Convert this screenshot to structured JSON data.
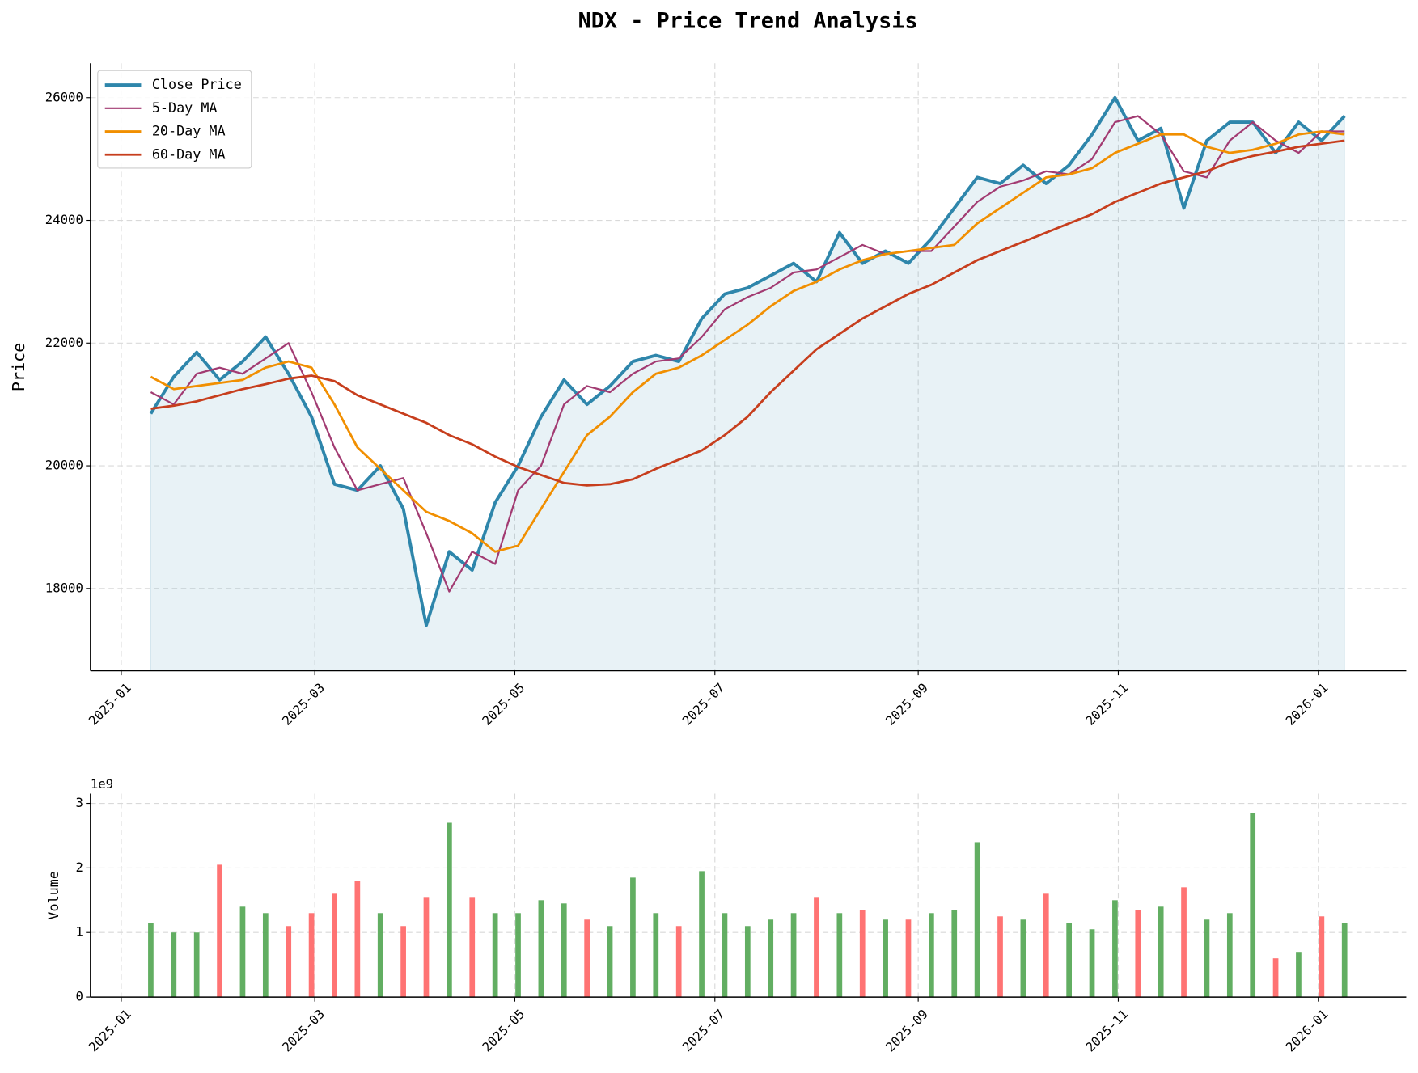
{
  "chart_data": [
    {
      "type": "line",
      "title": "NDX - Price Trend Analysis",
      "ylabel": "Price",
      "grid": true,
      "legend": "upper left",
      "x": [
        9,
        16,
        23,
        30,
        37,
        44,
        51,
        58,
        65,
        72,
        79,
        86,
        93,
        100,
        107,
        114,
        121,
        128,
        135,
        142,
        149,
        156,
        163,
        170,
        177,
        184,
        191,
        198,
        205,
        212,
        219,
        226,
        233,
        240,
        247,
        254,
        261,
        268,
        275,
        282,
        289,
        296,
        303,
        310,
        317,
        324,
        331,
        338,
        345,
        352,
        359,
        366,
        373
      ],
      "xlim": [
        -9.4,
        391.8
      ],
      "xticks": [
        {
          "value": 0,
          "label": "2025-01"
        },
        {
          "value": 59,
          "label": "2025-03"
        },
        {
          "value": 120,
          "label": "2025-05"
        },
        {
          "value": 181,
          "label": "2025-07"
        },
        {
          "value": 243,
          "label": "2025-09"
        },
        {
          "value": 304,
          "label": "2025-11"
        },
        {
          "value": 365,
          "label": "2026-01"
        }
      ],
      "ylim": [
        16660,
        26560
      ],
      "yticks": [
        18000,
        20000,
        22000,
        24000,
        26000
      ],
      "series": [
        {
          "name": "Close Price",
          "color": "#2e86ab",
          "width": 3.5,
          "area": true,
          "values": [
            20850,
            21450,
            21850,
            21400,
            21700,
            22100,
            21500,
            20800,
            19700,
            19600,
            20000,
            19300,
            17400,
            18600,
            18300,
            19400,
            20000,
            20800,
            21400,
            21000,
            21300,
            21700,
            21800,
            21700,
            22400,
            22800,
            22900,
            23100,
            23300,
            23000,
            23800,
            23300,
            23500,
            23300,
            23700,
            24200,
            24700,
            24600,
            24900,
            24600,
            24900,
            25400,
            26000,
            25300,
            25500,
            24200,
            25300,
            25600,
            25600,
            25100,
            25600,
            25300,
            25700
          ]
        },
        {
          "name": "5-Day MA",
          "color": "#a23b72",
          "width": 2,
          "values": [
            21200,
            21000,
            21500,
            21600,
            21500,
            21750,
            22000,
            21200,
            20300,
            19600,
            19700,
            19800,
            18900,
            17950,
            18600,
            18400,
            19600,
            20000,
            21000,
            21300,
            21200,
            21500,
            21700,
            21750,
            22100,
            22550,
            22750,
            22900,
            23150,
            23200,
            23400,
            23600,
            23450,
            23500,
            23500,
            23900,
            24300,
            24550,
            24650,
            24800,
            24750,
            25000,
            25600,
            25700,
            25400,
            24800,
            24700,
            25300,
            25600,
            25300,
            25100,
            25450,
            25450
          ]
        },
        {
          "name": "20-Day MA",
          "color": "#f18f01",
          "width": 2.5,
          "values": [
            21450,
            21250,
            21300,
            21350,
            21400,
            21600,
            21700,
            21600,
            21000,
            20300,
            19950,
            19600,
            19250,
            19100,
            18900,
            18600,
            18700,
            19300,
            19900,
            20500,
            20800,
            21200,
            21500,
            21600,
            21800,
            22050,
            22300,
            22600,
            22850,
            23000,
            23200,
            23350,
            23450,
            23500,
            23550,
            23600,
            23950,
            24200,
            24450,
            24700,
            24750,
            24850,
            25100,
            25250,
            25400,
            25400,
            25200,
            25100,
            25150,
            25250,
            25400,
            25450,
            25400
          ]
        },
        {
          "name": "60-Day MA",
          "color": "#c73e1d",
          "width": 2.5,
          "values": [
            20930,
            20980,
            21050,
            21150,
            21250,
            21330,
            21420,
            21470,
            21380,
            21150,
            21000,
            20850,
            20700,
            20500,
            20350,
            20150,
            19980,
            19850,
            19720,
            19680,
            19700,
            19780,
            19950,
            20100,
            20250,
            20500,
            20800,
            21200,
            21550,
            21900,
            22150,
            22400,
            22600,
            22800,
            22950,
            23150,
            23350,
            23500,
            23650,
            23800,
            23950,
            24100,
            24300,
            24450,
            24600,
            24700,
            24800,
            24950,
            25050,
            25120,
            25200,
            25250,
            25300
          ]
        }
      ]
    },
    {
      "type": "bar",
      "ylabel": "Volume",
      "offset_label": "1e9",
      "grid": true,
      "up_color": "#5aaa5a",
      "down_color": "#ff6b6b",
      "ylim": [
        0,
        3.15
      ],
      "yticks": [
        0,
        1,
        2,
        3
      ],
      "values": [
        1.15,
        1.0,
        1.0,
        2.05,
        1.4,
        1.3,
        1.1,
        1.3,
        1.6,
        1.8,
        1.3,
        1.1,
        1.55,
        2.7,
        1.55,
        1.3,
        1.3,
        1.5,
        1.45,
        1.2,
        1.1,
        1.85,
        1.3,
        1.1,
        1.95,
        1.3,
        1.1,
        1.2,
        1.3,
        1.55,
        1.3,
        1.35,
        1.2,
        1.2,
        1.3,
        1.35,
        2.4,
        1.25,
        1.2,
        1.6,
        1.15,
        1.05,
        1.5,
        1.35,
        1.4,
        1.7,
        1.2,
        1.3,
        2.85,
        0.6,
        0.7,
        1.25,
        1.15
      ]
    }
  ]
}
